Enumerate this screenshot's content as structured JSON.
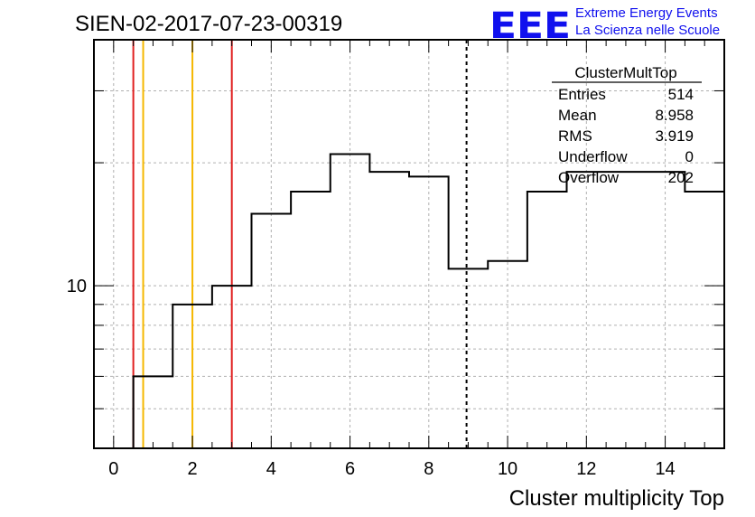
{
  "title": "SIEN-02-2017-07-23-00319",
  "logo": {
    "mark": "EEE",
    "line1": "Extreme Energy Events",
    "line2": "La Scienza nelle Scuole",
    "color": "#1010ee"
  },
  "stats": {
    "name": "ClusterMultTop",
    "rows": [
      {
        "label": "Entries",
        "value": "514"
      },
      {
        "label": "Mean",
        "value": "8.958"
      },
      {
        "label": "RMS",
        "value": "3.919"
      },
      {
        "label": "Underflow",
        "value": "0"
      },
      {
        "label": "Overflow",
        "value": "202"
      }
    ]
  },
  "chart_data": {
    "type": "histogram",
    "title": "SIEN-02-2017-07-23-00319",
    "xlabel": "Cluster multiplicity Top",
    "ylabel": "",
    "xlim": [
      -0.5,
      15.5
    ],
    "ylim": [
      4,
      40
    ],
    "yscale": "log",
    "grid": true,
    "line_color": "#000000",
    "bin_edges": [
      0.5,
      1.5,
      2.5,
      3.5,
      4.5,
      5.5,
      6.5,
      7.5,
      8.5,
      9.5,
      10.5,
      11.5,
      12.5,
      13.5,
      14.5,
      15.5
    ],
    "values": [
      6,
      9,
      10,
      15,
      17,
      21,
      19,
      18.5,
      11,
      11.5,
      17,
      19,
      19,
      19,
      17
    ],
    "x_ticks": [
      0,
      2,
      4,
      6,
      8,
      10,
      12,
      14
    ],
    "y_tick_labels": [
      {
        "value": 10,
        "label": "10"
      }
    ],
    "vertical_lines": [
      {
        "x": 0.5,
        "color": "#e02020",
        "style": "solid"
      },
      {
        "x": 0.75,
        "color": "#f5b800",
        "style": "solid"
      },
      {
        "x": 2.0,
        "color": "#f5b800",
        "style": "solid"
      },
      {
        "x": 3.0,
        "color": "#e02020",
        "style": "solid"
      },
      {
        "x": 8.958,
        "color": "#000000",
        "style": "dashed"
      }
    ]
  }
}
